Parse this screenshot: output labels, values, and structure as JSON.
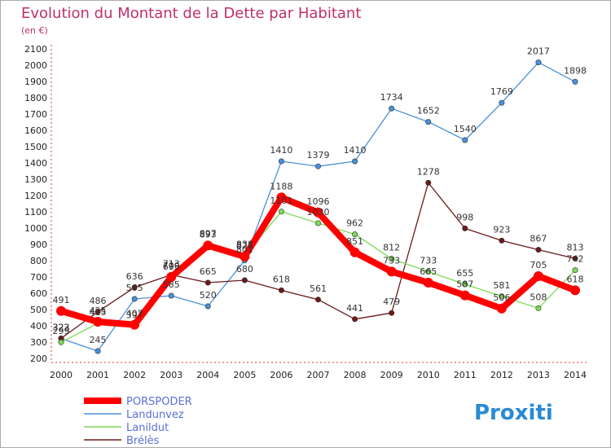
{
  "chart_data": {
    "type": "line",
    "title": "Evolution du Montant de la Dette par Habitant",
    "subtitle": "(en €)",
    "x": [
      "2000",
      "2001",
      "2002",
      "2003",
      "2004",
      "2005",
      "2006",
      "2007",
      "2008",
      "2009",
      "2010",
      "2011",
      "2012",
      "2013",
      "2014"
    ],
    "ylim": [
      200,
      2100
    ],
    "yticks": [
      200,
      300,
      400,
      500,
      600,
      700,
      800,
      900,
      1000,
      1100,
      1200,
      1300,
      1400,
      1500,
      1600,
      1700,
      1800,
      1900,
      2000,
      2100
    ],
    "grid": false,
    "legend_position": "bottom-left",
    "series": [
      {
        "name": "PORSPODER",
        "color": "#ff0000",
        "values": [
          491,
          425,
          407,
          700,
          893,
          825,
          1188,
          1096,
          851,
          733,
          665,
          587,
          506,
          705,
          618
        ]
      },
      {
        "name": "Landunvez",
        "color": "#4a90d9",
        "values": [
          322,
          245,
          565,
          585,
          520,
          801,
          1410,
          1379,
          1410,
          1734,
          1652,
          1540,
          1769,
          2017,
          1898
        ]
      },
      {
        "name": "Lanildut",
        "color": "#7ed957",
        "values": [
          299,
          415,
          397,
          695,
          897,
          833,
          1101,
          1030,
          962,
          812,
          733,
          655,
          581,
          508,
          742
        ]
      },
      {
        "name": "Brélès",
        "color": "#6b1a1a",
        "values": [
          323,
          486,
          636,
          713,
          665,
          680,
          618,
          561,
          441,
          479,
          1278,
          998,
          923,
          867,
          813
        ]
      }
    ]
  },
  "brand": {
    "text": "Proxiti"
  }
}
